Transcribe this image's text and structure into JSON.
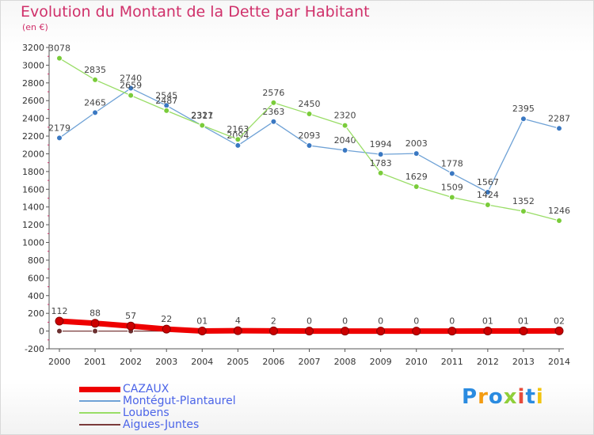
{
  "header": {
    "title": "Evolution du Montant de la Dette par Habitant",
    "subtitle": "(en €)"
  },
  "logo": {
    "text": "Proxiti",
    "letters": [
      "P",
      "r",
      "o",
      "x",
      "i",
      "t",
      "i"
    ]
  },
  "chart_data": {
    "type": "line",
    "x": [
      "2000",
      "2001",
      "2002",
      "2003",
      "2004",
      "2005",
      "2006",
      "2007",
      "2008",
      "2009",
      "2010",
      "2011",
      "2012",
      "2013",
      "2014"
    ],
    "ylim": [
      -200,
      3200
    ],
    "yticks": [
      -200,
      0,
      200,
      400,
      600,
      800,
      1000,
      1200,
      1400,
      1600,
      1800,
      2000,
      2200,
      2400,
      2600,
      2800,
      3000,
      3200
    ],
    "grid": false,
    "legend_position": "bottom-left",
    "series": [
      {
        "name": "CAZAUX",
        "color": "#ee0000",
        "values": [
          112,
          88,
          57,
          22,
          1,
          4,
          2,
          0,
          0,
          0,
          0,
          0,
          1,
          1,
          2
        ],
        "labels": [
          "112",
          "88",
          "57",
          "22",
          "01",
          "4",
          "2",
          "0",
          "0",
          "0",
          "0",
          "0",
          "01",
          "01",
          "02"
        ]
      },
      {
        "name": "Montégut-Plantaurel",
        "color": "#6fa2d6",
        "values": [
          2179,
          2465,
          2740,
          2545,
          2317,
          2094,
          2363,
          2093,
          2040,
          1994,
          2003,
          1778,
          1567,
          2395,
          2287
        ]
      },
      {
        "name": "Loubens",
        "color": "#99dd66",
        "values": [
          3078,
          2835,
          2659,
          2487,
          2321,
          2163,
          2576,
          2450,
          2320,
          1783,
          1629,
          1509,
          1424,
          1352,
          1246
        ]
      },
      {
        "name": "Aigues-Juntes",
        "color": "#7a3a3a",
        "values": [
          0,
          0,
          0,
          0,
          0,
          0,
          0,
          0,
          0,
          0,
          0,
          0,
          0,
          0,
          0
        ]
      }
    ]
  }
}
